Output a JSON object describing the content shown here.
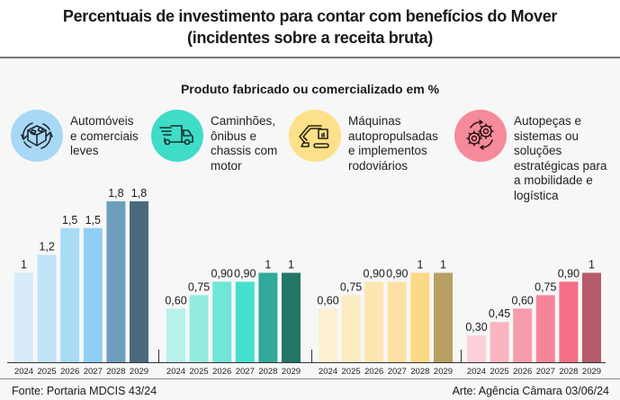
{
  "header": {
    "title_line1": "Percentuais de investimento para contar com benefícios do Mover",
    "title_line2": "(incidentes sobre a receita bruta)"
  },
  "subtitle": "Produto fabricado ou comercializado em %",
  "categories": [
    {
      "icon": "car-box-cycle-icon",
      "color": "#a8d8f5",
      "label_lines": [
        "Automóveis",
        "e comerciais",
        "leves"
      ]
    },
    {
      "icon": "truck-icon",
      "color": "#3fdcc8",
      "label_lines": [
        "Caminhões,",
        "ônibus e",
        "chassis com",
        "motor"
      ]
    },
    {
      "icon": "excavator-icon",
      "color": "#fde08a",
      "label_lines": [
        "Máquinas",
        "autopropulsadas",
        "e implementos",
        "rodoviários"
      ]
    },
    {
      "icon": "gears-cycle-icon",
      "color": "#f58a9a",
      "label_lines": [
        "Autopeças e",
        "sistemas ou",
        "soluções",
        "estratégicas para",
        "a mobilidade e",
        "logística"
      ]
    }
  ],
  "chart_data": {
    "type": "bar",
    "title": "Percentuais de investimento para contar com benefícios do Mover (incidentes sobre a receita bruta)",
    "subtitle": "Produto fabricado ou comercializado em %",
    "categories": [
      "2024",
      "2025",
      "2026",
      "2027",
      "2028",
      "2029"
    ],
    "ylim": [
      0,
      1.8
    ],
    "grid": false,
    "series": [
      {
        "name": "Automóveis e comerciais leves",
        "values": [
          1,
          1.2,
          1.5,
          1.5,
          1.8,
          1.8
        ],
        "labels": [
          "1",
          "1,2",
          "1,5",
          "1,5",
          "1,8",
          "1,8"
        ],
        "colors": [
          "#d6ecfa",
          "#c2e4f8",
          "#a9daf6",
          "#8ecff3",
          "#6d9fbd",
          "#4b6a80"
        ]
      },
      {
        "name": "Caminhões, ônibus e chassis com motor",
        "values": [
          0.6,
          0.75,
          0.9,
          0.9,
          1,
          1
        ],
        "labels": [
          "0,60",
          "0,75",
          "0,90",
          "0,90",
          "1",
          "1"
        ],
        "colors": [
          "#b6f1ea",
          "#93ebe0",
          "#6ee6d8",
          "#45e0cd",
          "#32a99b",
          "#237668"
        ]
      },
      {
        "name": "Máquinas autopropulsadas e implementos rodoviários",
        "values": [
          0.6,
          0.75,
          0.9,
          0.9,
          1,
          1
        ],
        "labels": [
          "0,60",
          "0,75",
          "0,90",
          "0,90",
          "1",
          "1"
        ],
        "colors": [
          "#fdf1d2",
          "#fdebc2",
          "#fde6b2",
          "#fde1a4",
          "#fdd985",
          "#b89f62"
        ]
      },
      {
        "name": "Autopeças e sistemas ou soluções estratégicas para a mobilidade e logística",
        "values": [
          0.3,
          0.45,
          0.6,
          0.75,
          0.9,
          1
        ],
        "labels": [
          "0,30",
          "0,45",
          "0,60",
          "0,75",
          "0,90",
          "1"
        ],
        "colors": [
          "#fbd0d6",
          "#f9b6c0",
          "#f79cab",
          "#f68598",
          "#f46e84",
          "#b65a6c"
        ]
      }
    ]
  },
  "footer": {
    "source": "Fonte: Portaria MDCIS 43/24",
    "credit": "Arte: Agência Câmara 03/06/24"
  }
}
